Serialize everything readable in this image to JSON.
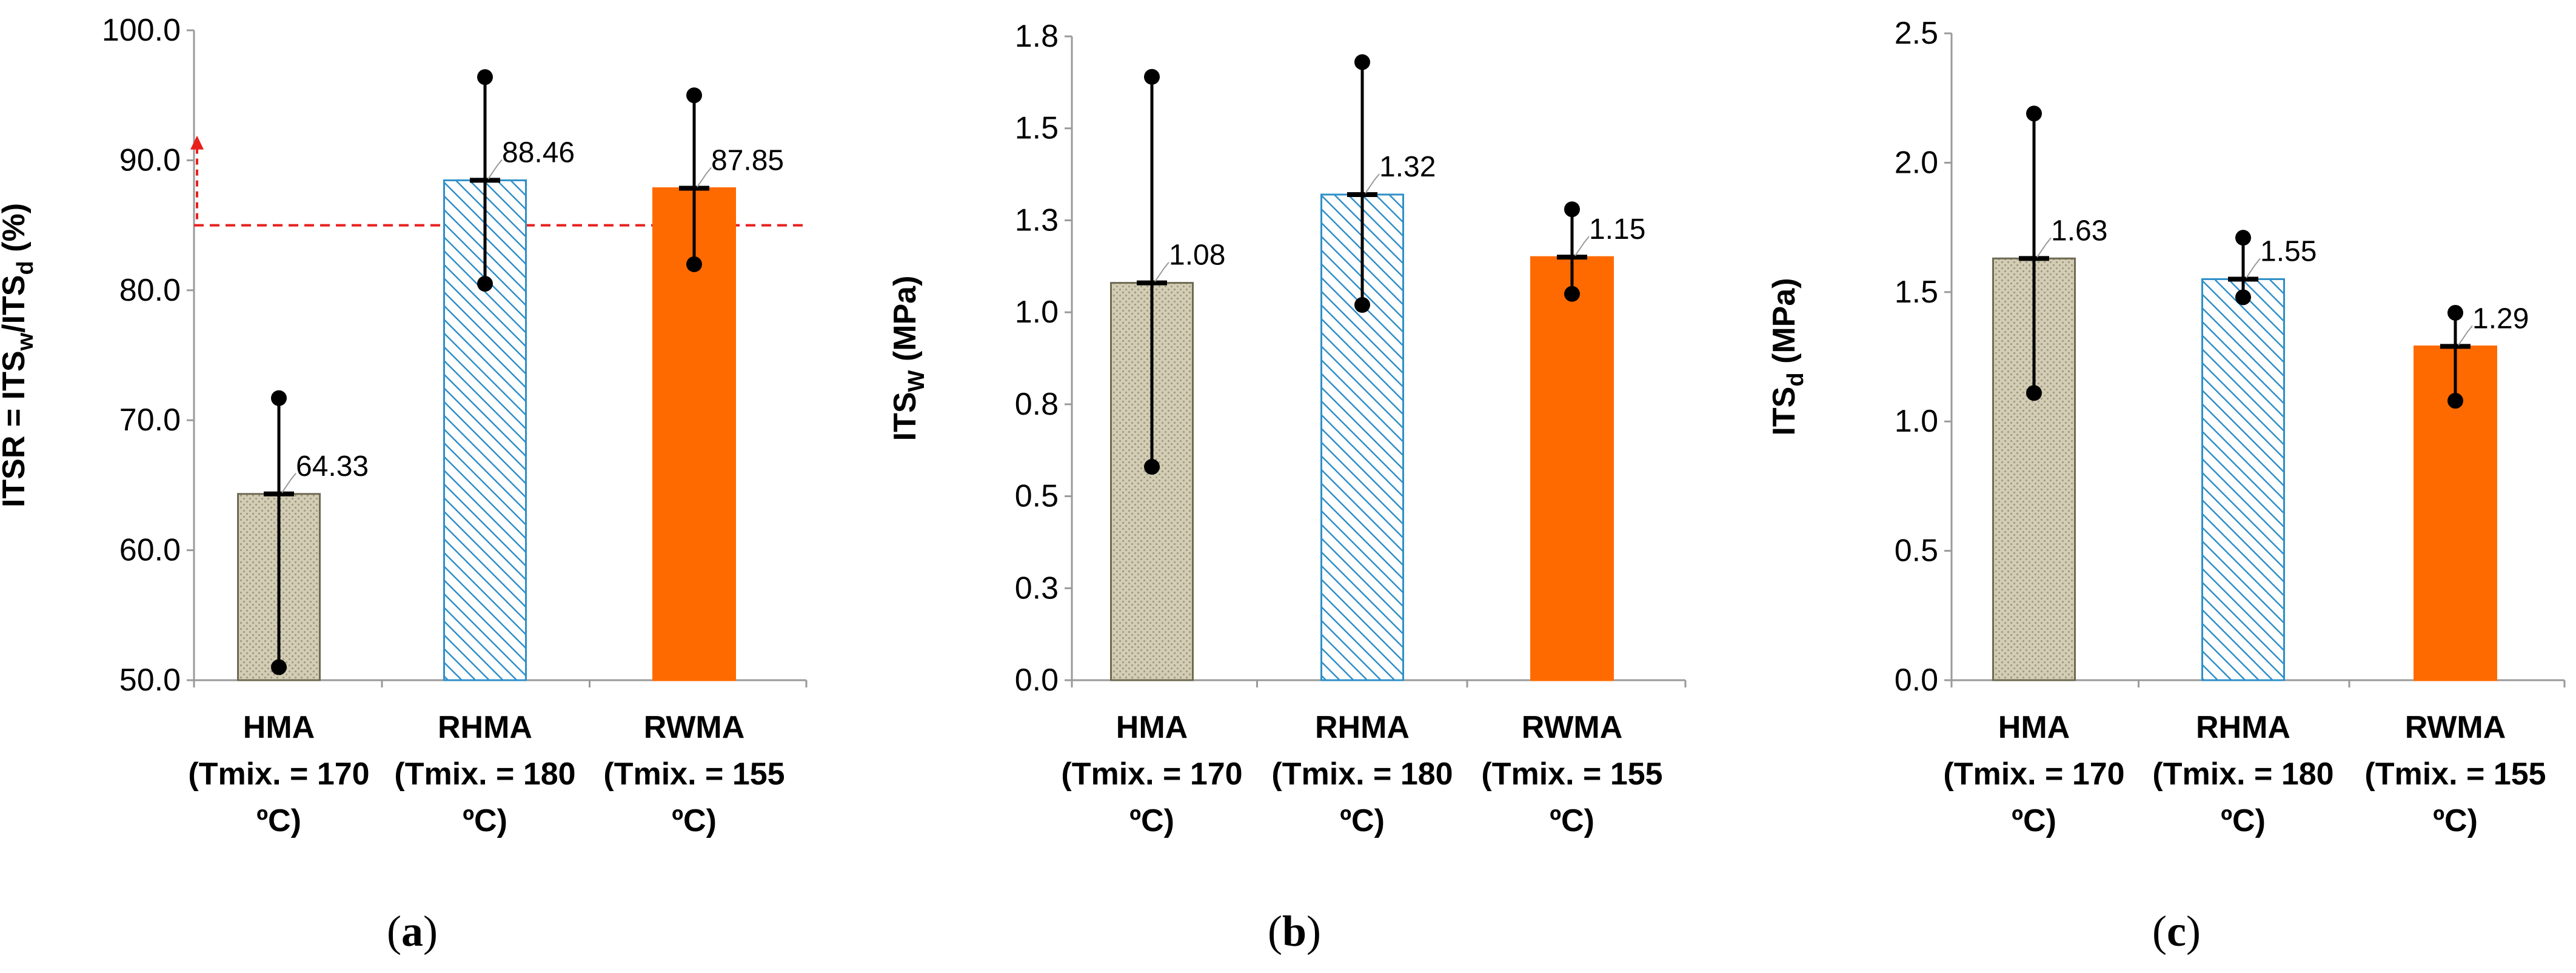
{
  "figure": {
    "panel_labels": [
      {
        "pre": "(",
        "letter": "a",
        "post": ")"
      },
      {
        "pre": "(",
        "letter": "b",
        "post": ")"
      },
      {
        "pre": "(",
        "letter": "c",
        "post": ")"
      }
    ]
  },
  "chart_data": [
    {
      "type": "bar",
      "ylabel": "ITSR = ITSw/ITSd (%)",
      "ylabel_parts": [
        {
          "text": "ITSR = ITS",
          "sub": false
        },
        {
          "text": "w",
          "sub": true
        },
        {
          "text": "/ITS",
          "sub": false
        },
        {
          "text": "d",
          "sub": true
        },
        {
          "text": " (%)",
          "sub": false
        }
      ],
      "categories": [
        [
          "HMA",
          "(Tmix. = 170",
          "ºC)"
        ],
        [
          "RHMA",
          "(Tmix. = 180",
          "ºC)"
        ],
        [
          "RWMA",
          "(Tmix. = 155",
          "ºC)"
        ]
      ],
      "values": [
        64.33,
        88.46,
        87.85
      ],
      "value_labels": [
        "64.33",
        "88.46",
        "87.85"
      ],
      "error_max": [
        71.7,
        96.4,
        95.0
      ],
      "error_min": [
        51.0,
        80.5,
        82.0
      ],
      "ylim": [
        50,
        100
      ],
      "yticks": [
        "50.0",
        "60.0",
        "70.0",
        "80.0",
        "90.0",
        "100.0"
      ],
      "ytick_values": [
        50,
        60,
        70,
        80,
        90,
        100
      ],
      "threshold": 85,
      "threshold_color": "#e8201c",
      "fills": [
        "dotted-beige",
        "blue-hatch",
        "orange"
      ],
      "colors": {
        "beige_stroke": "#6e6a52",
        "blue": "#2f8fc8",
        "orange": "#ff6a00"
      }
    },
    {
      "type": "bar",
      "ylabel": "ITSW (MPa)",
      "ylabel_parts": [
        {
          "text": "ITS",
          "sub": false
        },
        {
          "text": "W",
          "sub": true
        },
        {
          "text": " (MPa)",
          "sub": false
        }
      ],
      "categories": [
        [
          "HMA",
          "(Tmix. = 170",
          "ºC)"
        ],
        [
          "RHMA",
          "(Tmix. = 180",
          "ºC)"
        ],
        [
          "RWMA",
          "(Tmix. = 155",
          "ºC)"
        ]
      ],
      "values": [
        1.08,
        1.32,
        1.15
      ],
      "value_labels": [
        "1.08",
        "1.32",
        "1.15"
      ],
      "error_max": [
        1.64,
        1.68,
        1.28
      ],
      "error_min": [
        0.58,
        1.02,
        1.05
      ],
      "ylim": [
        0,
        1.75
      ],
      "yticks": [
        "0.0",
        "0.3",
        "0.5",
        "0.8",
        "1.0",
        "1.3",
        "1.5",
        "1.8"
      ],
      "ytick_values": [
        0,
        0.25,
        0.5,
        0.75,
        1.0,
        1.25,
        1.5,
        1.75
      ],
      "fills": [
        "dotted-beige",
        "blue-hatch",
        "orange"
      ],
      "colors": {
        "beige_stroke": "#6e6a52",
        "blue": "#2f8fc8",
        "orange": "#ff6a00"
      }
    },
    {
      "type": "bar",
      "ylabel": "ITSd (MPa)",
      "ylabel_parts": [
        {
          "text": "ITS",
          "sub": false
        },
        {
          "text": "d",
          "sub": true
        },
        {
          "text": " (MPa)",
          "sub": false
        }
      ],
      "categories": [
        [
          "HMA",
          "(Tmix. = 170",
          "ºC)"
        ],
        [
          "RHMA",
          "(Tmix. = 180",
          "ºC)"
        ],
        [
          "RWMA",
          "(Tmix. = 155",
          "ºC)"
        ]
      ],
      "values": [
        1.63,
        1.55,
        1.29
      ],
      "value_labels": [
        "1.63",
        "1.55",
        "1.29"
      ],
      "error_max": [
        2.19,
        1.71,
        1.42
      ],
      "error_min": [
        1.11,
        1.48,
        1.08
      ],
      "ylim": [
        0,
        2.5
      ],
      "yticks": [
        "0.0",
        "0.5",
        "1.0",
        "1.5",
        "2.0",
        "2.5"
      ],
      "ytick_values": [
        0,
        0.5,
        1.0,
        1.5,
        2.0,
        2.5
      ],
      "fills": [
        "dotted-beige",
        "blue-hatch",
        "orange"
      ],
      "colors": {
        "beige_stroke": "#6e6a52",
        "blue": "#2f8fc8",
        "orange": "#ff6a00"
      }
    }
  ]
}
